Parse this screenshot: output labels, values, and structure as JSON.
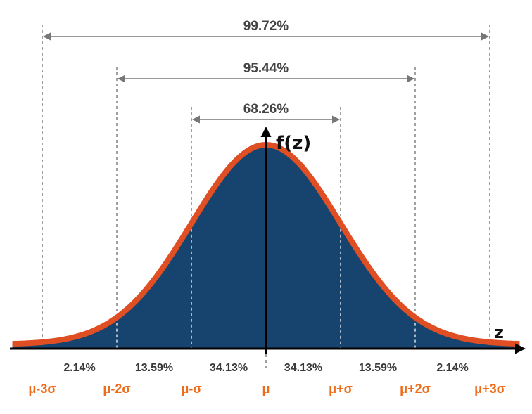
{
  "chart_data": {
    "type": "area",
    "distribution": "normal",
    "xlabel": "z",
    "ylabel": "f(z)",
    "xlim": [
      -3.4,
      3.4
    ],
    "tick_labels": [
      "μ-3σ",
      "μ-2σ",
      "μ-σ",
      "μ",
      "μ+σ",
      "μ+2σ",
      "μ+3σ"
    ],
    "tick_values": [
      -3,
      -2,
      -1,
      0,
      1,
      2,
      3
    ],
    "bands": [
      {
        "from": -3,
        "to": -2,
        "label": "2.14%"
      },
      {
        "from": -2,
        "to": -1,
        "label": "13.59%"
      },
      {
        "from": -1,
        "to": 0,
        "label": "34.13%"
      },
      {
        "from": 0,
        "to": 1,
        "label": "34.13%"
      },
      {
        "from": 1,
        "to": 2,
        "label": "13.59%"
      },
      {
        "from": 2,
        "to": 3,
        "label": "2.14%"
      }
    ],
    "intervals": [
      {
        "from": -1,
        "to": 1,
        "label": "68.26%"
      },
      {
        "from": -2,
        "to": 2,
        "label": "95.44%"
      },
      {
        "from": -3,
        "to": 3,
        "label": "99.72%"
      }
    ],
    "colors": {
      "fill": "#17446f",
      "curve": "#e04e24",
      "tick_label": "#ef6c1a",
      "axis": "#000000",
      "guide": "#777777",
      "arrow": "#777777"
    }
  }
}
